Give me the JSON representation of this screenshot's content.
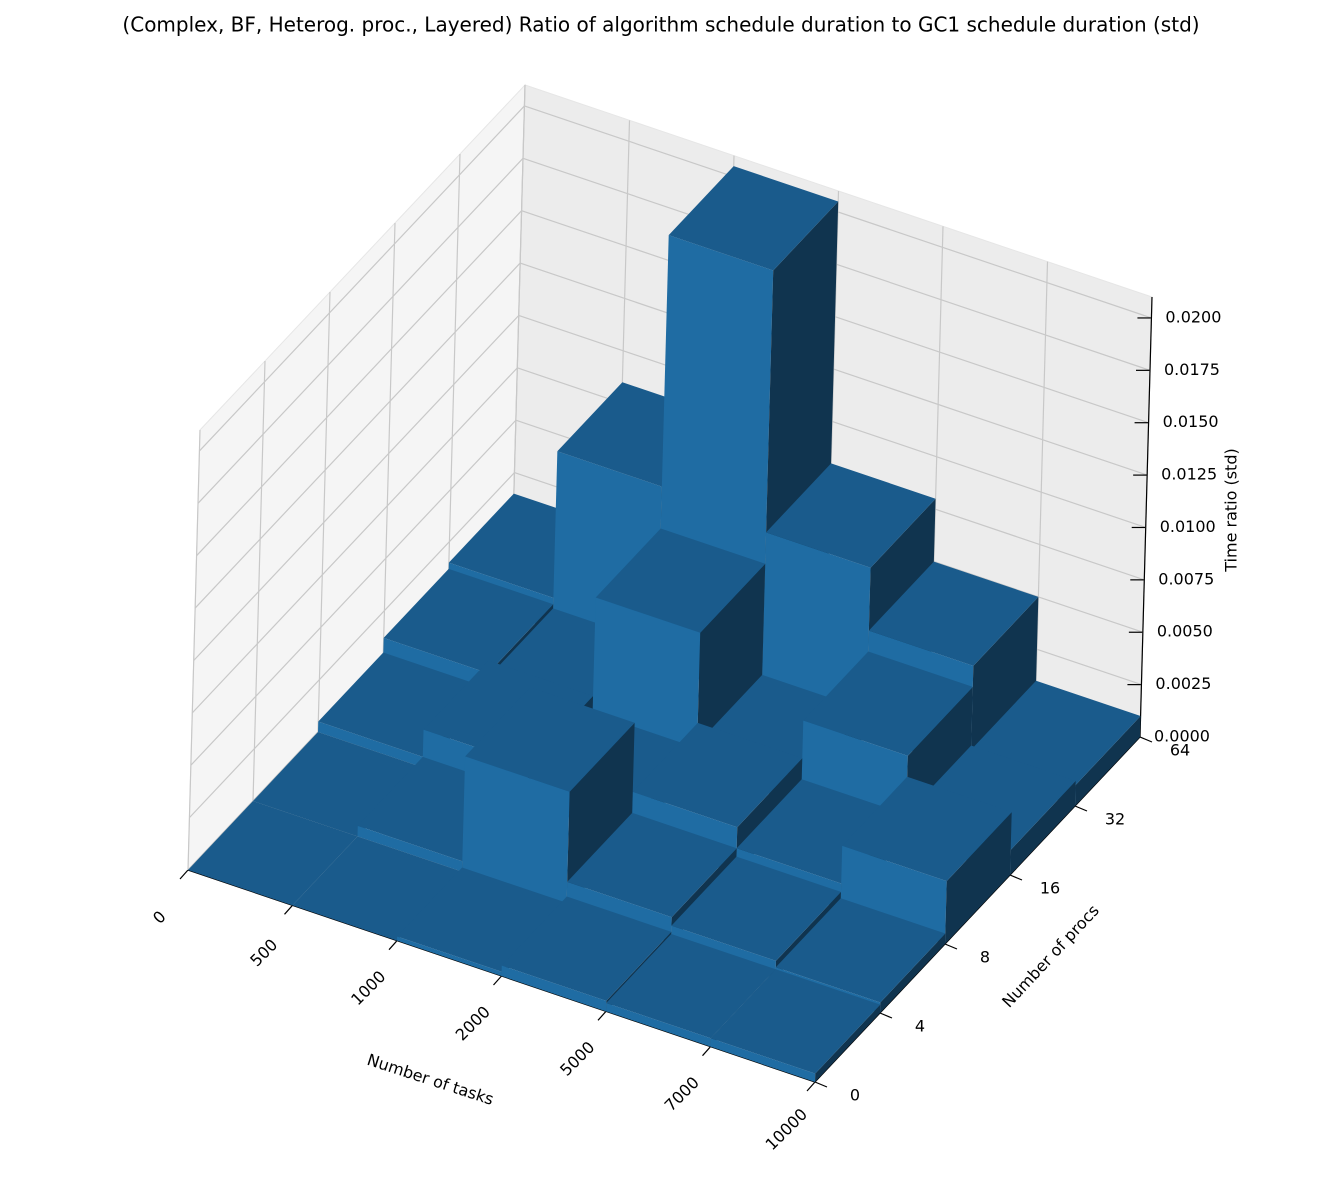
{
  "chart_data": {
    "type": "bar3d",
    "title": "(Complex, BF, Heterog. proc., Layered) Ratio of algorithm schedule duration to GC1 schedule duration (std)",
    "x_label": "Number of tasks",
    "y_label": "Number of procs",
    "z_label": "Time ratio (std)",
    "categories": [
      "0",
      "500",
      "1000",
      "2000",
      "5000",
      "7000",
      "10000"
    ],
    "y_categories": [
      "0",
      "4",
      "8",
      "16",
      "32",
      "64"
    ],
    "color": "#1f6ca3",
    "values": [
      [
        0.0,
        0.0,
        0.0002,
        0.0005,
        0.0004,
        0.0004
      ],
      [
        0.0,
        0.0005,
        0.0055,
        0.0012,
        0.0008,
        0.0005
      ],
      [
        0.0005,
        0.0018,
        0.001,
        0.0022,
        0.0012,
        0.003
      ],
      [
        0.0012,
        0.001,
        0.0065,
        0.0012,
        0.004,
        0.0012
      ],
      [
        0.0015,
        0.0085,
        0.0205,
        0.008,
        0.005,
        0.001
      ]
    ],
    "zlim": [
      0,
      0.021
    ],
    "zticks": [
      {
        "value": 0,
        "label": "0.0000"
      },
      {
        "value": 0.0025,
        "label": "0.0025"
      },
      {
        "value": 0.005,
        "label": "0.0050"
      },
      {
        "value": 0.0075,
        "label": "0.0075"
      },
      {
        "value": 0.01,
        "label": "0.0100"
      },
      {
        "value": 0.0125,
        "label": "0.0125"
      },
      {
        "value": 0.015,
        "label": "0.0150"
      },
      {
        "value": 0.0175,
        "label": "0.0175"
      },
      {
        "value": 0.02,
        "label": "0.0200"
      }
    ],
    "grid": true
  }
}
